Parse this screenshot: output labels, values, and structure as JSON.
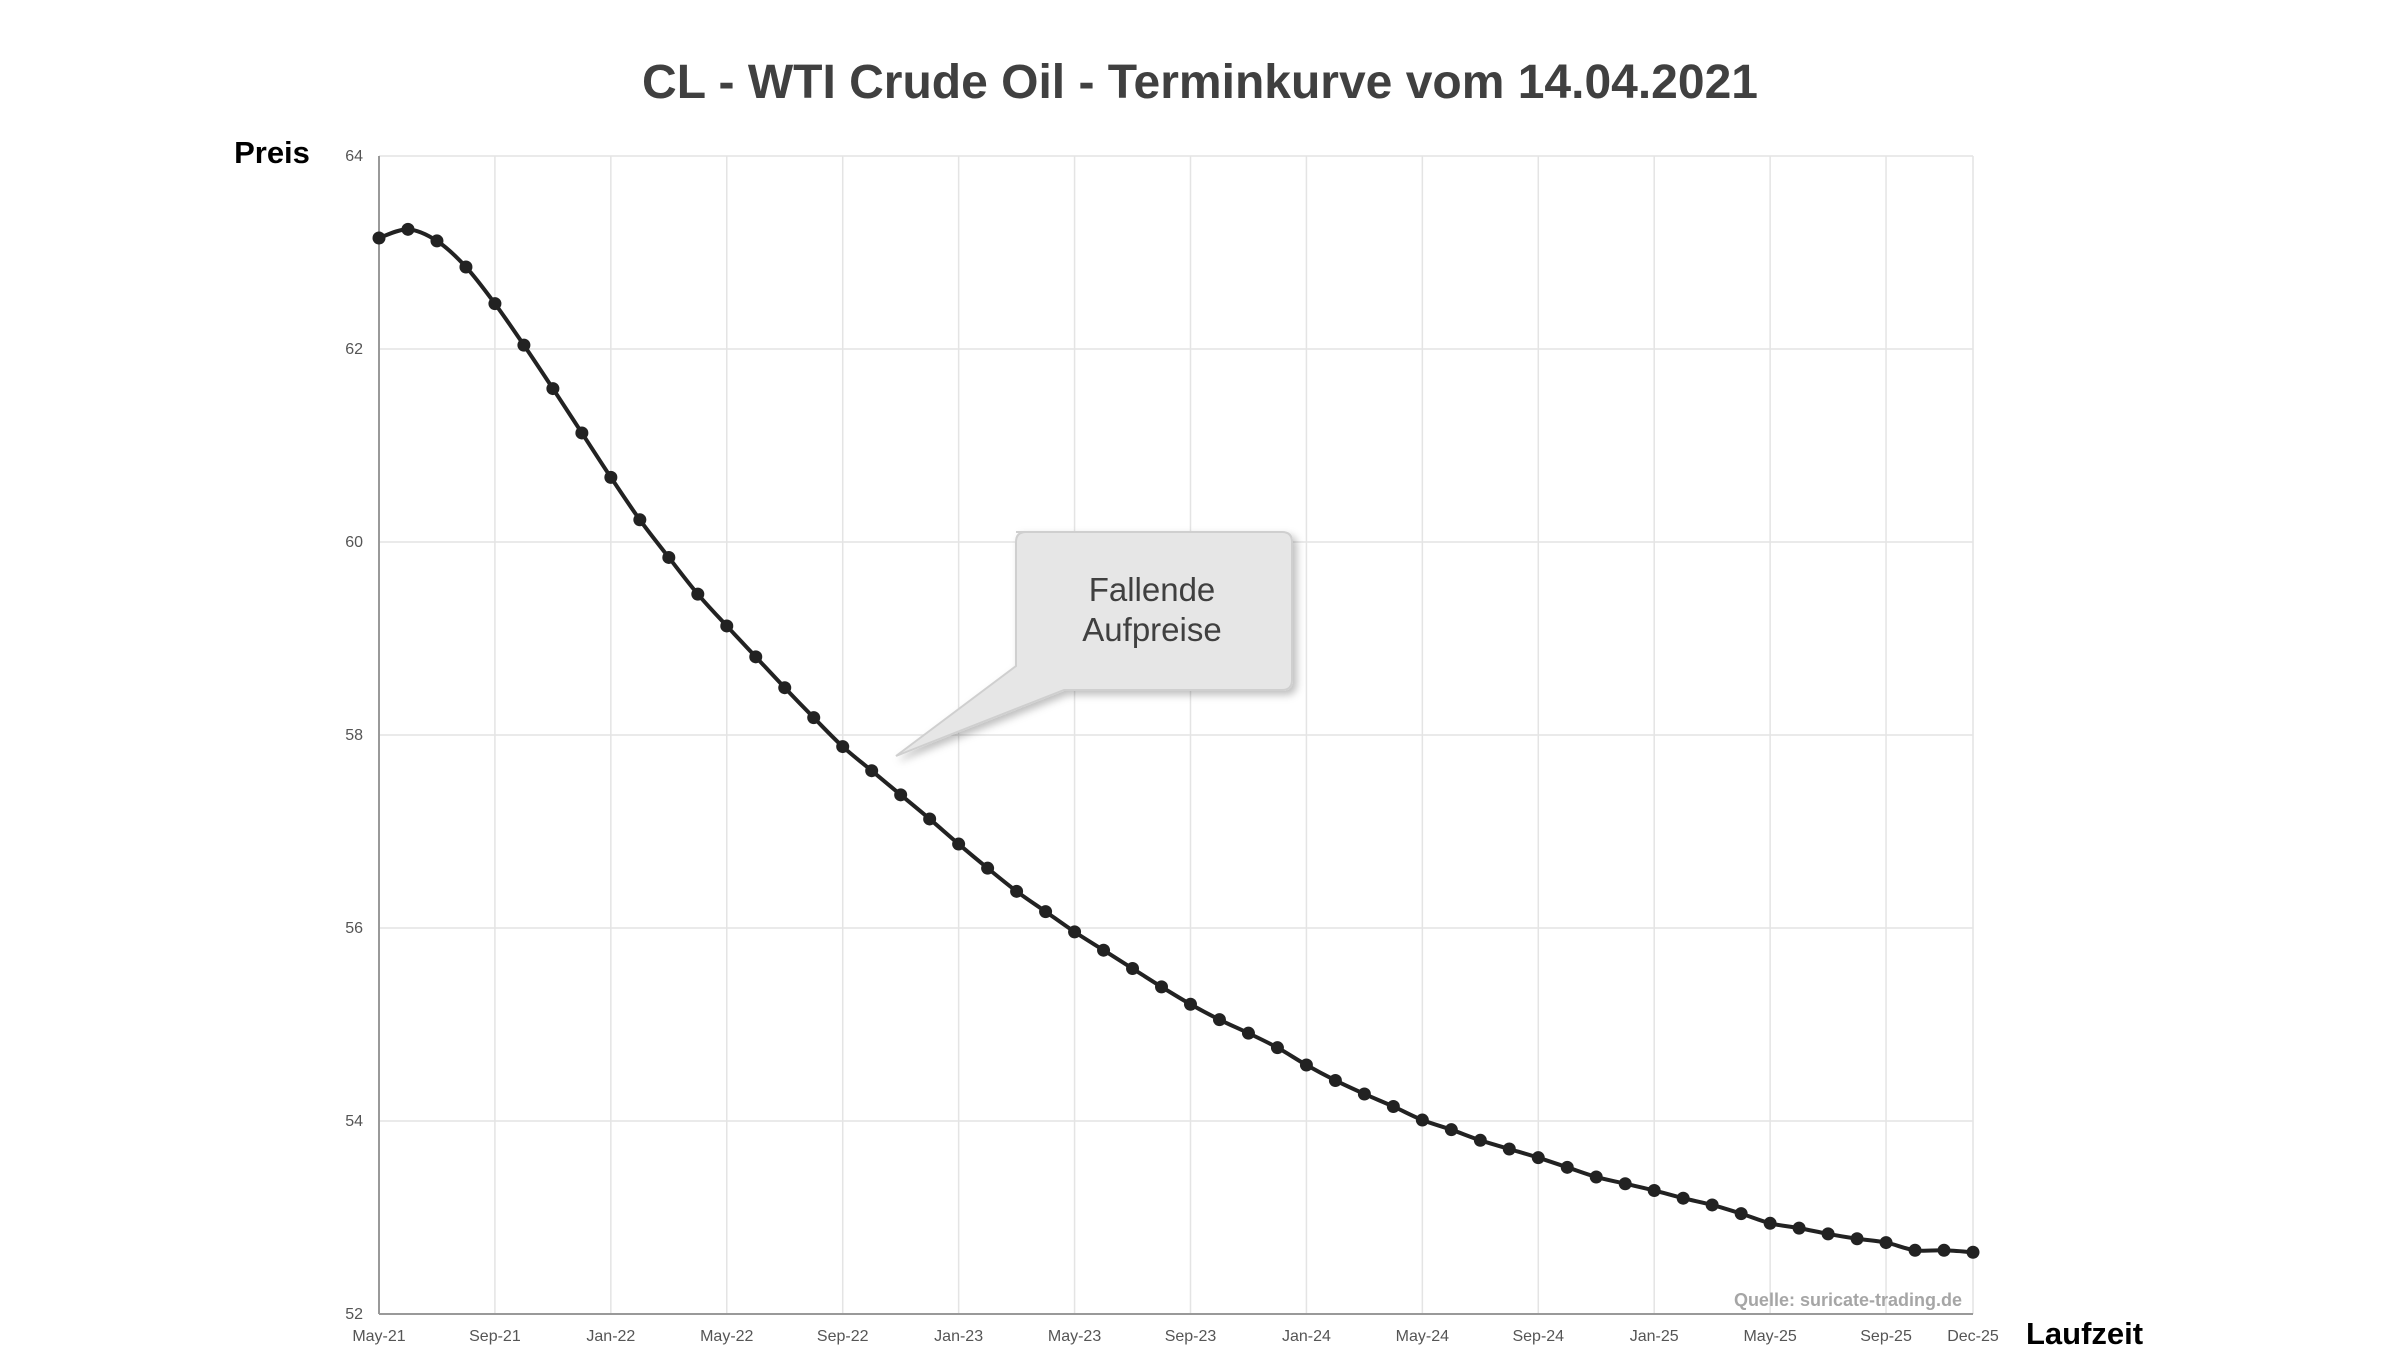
{
  "chart_data": {
    "type": "line",
    "title": "CL - WTI Crude Oil - Terminkurve vom 14.04.2021",
    "ylabel": "Preis",
    "xlabel": "Laufzeit",
    "source": "Quelle: suricate-trading.de",
    "annotation": {
      "lines": [
        "Fallende",
        "Aufpreise"
      ],
      "points_to": "Nov-22"
    },
    "ylim": [
      52,
      64
    ],
    "y_ticks": [
      "52",
      "54",
      "56",
      "58",
      "60",
      "62",
      "64"
    ],
    "x_tick_labels": [
      "May-21",
      "Sep-21",
      "Jan-22",
      "May-22",
      "Sep-22",
      "Jan-23",
      "May-23",
      "Sep-23",
      "Jan-24",
      "May-24",
      "Sep-24",
      "Jan-25",
      "May-25",
      "Sep-25",
      "Dec-25"
    ],
    "grid": true,
    "series": [
      {
        "color": "#222222",
        "x": [
          "May-21",
          "Jun-21",
          "Jul-21",
          "Aug-21",
          "Sep-21",
          "Oct-21",
          "Nov-21",
          "Dec-21",
          "Jan-22",
          "Feb-22",
          "Mar-22",
          "Apr-22",
          "May-22",
          "Jun-22",
          "Jul-22",
          "Aug-22",
          "Sep-22",
          "Oct-22",
          "Nov-22",
          "Dec-22",
          "Jan-23",
          "Feb-23",
          "Mar-23",
          "Apr-23",
          "May-23",
          "Jun-23",
          "Jul-23",
          "Aug-23",
          "Sep-23",
          "Oct-23",
          "Nov-23",
          "Dec-23",
          "Jan-24",
          "Feb-24",
          "Mar-24",
          "Apr-24",
          "May-24",
          "Jun-24",
          "Jul-24",
          "Aug-24",
          "Sep-24",
          "Oct-24",
          "Nov-24",
          "Dec-24",
          "Jan-25",
          "Feb-25",
          "Mar-25",
          "Apr-25",
          "May-25",
          "Jun-25",
          "Jul-25",
          "Aug-25",
          "Sep-25",
          "Oct-25",
          "Nov-25",
          "Dec-25"
        ],
        "values": [
          63.15,
          63.24,
          63.12,
          62.85,
          62.47,
          62.04,
          61.59,
          61.13,
          60.67,
          60.23,
          59.84,
          59.46,
          59.13,
          58.81,
          58.49,
          58.18,
          57.88,
          57.63,
          57.38,
          57.13,
          56.87,
          56.62,
          56.38,
          56.17,
          55.96,
          55.77,
          55.58,
          55.39,
          55.21,
          55.05,
          54.91,
          54.76,
          54.58,
          54.42,
          54.28,
          54.15,
          54.01,
          53.91,
          53.8,
          53.71,
          53.62,
          53.52,
          53.42,
          53.35,
          53.28,
          53.2,
          53.13,
          53.04,
          52.94,
          52.89,
          52.83,
          52.78,
          52.74,
          52.66,
          52.66,
          52.64
        ]
      }
    ]
  }
}
